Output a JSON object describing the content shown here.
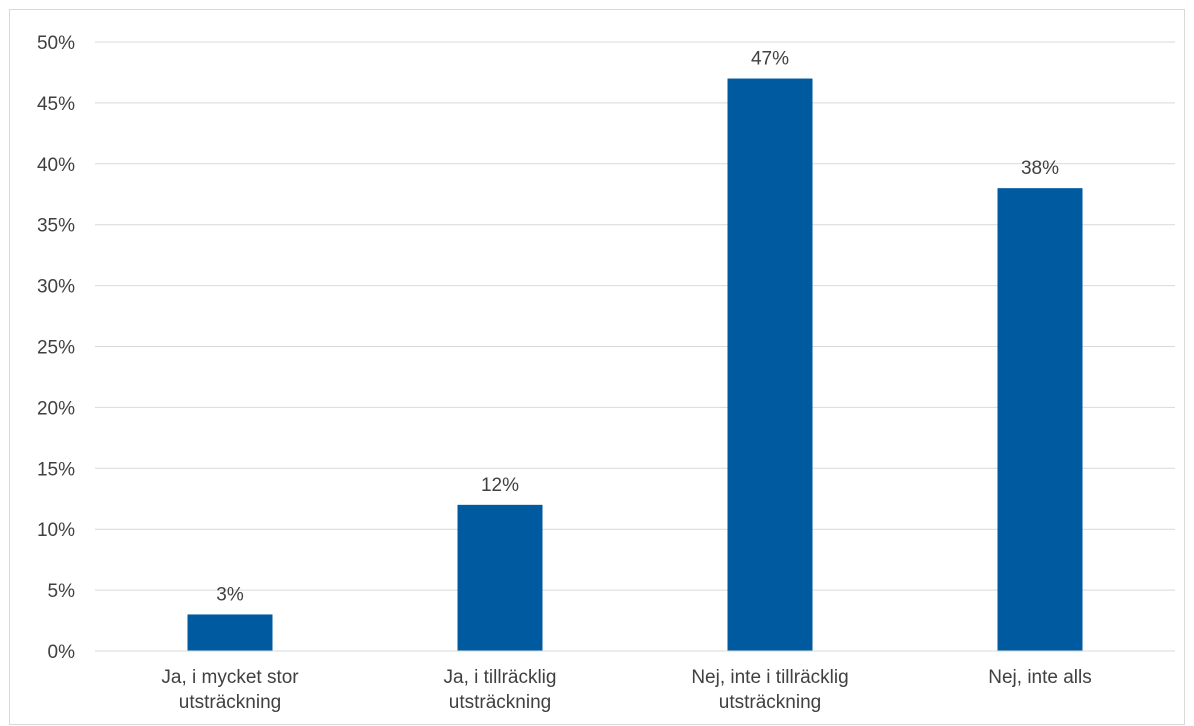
{
  "chart_data": {
    "type": "bar",
    "categories": [
      [
        "Ja, i mycket stor",
        "utsträckning"
      ],
      [
        "Ja, i tillräcklig",
        "utsträckning"
      ],
      [
        "Nej, inte i tillräcklig",
        "utsträckning"
      ],
      [
        "Nej, inte alls"
      ]
    ],
    "values": [
      3,
      12,
      47,
      38
    ],
    "data_labels": [
      "3%",
      "12%",
      "47%",
      "38%"
    ],
    "yticks": [
      "0%",
      "5%",
      "10%",
      "15%",
      "20%",
      "25%",
      "30%",
      "35%",
      "40%",
      "45%",
      "50%"
    ],
    "ylim": [
      0,
      50
    ],
    "bar_color": "#005aa0",
    "grid": true,
    "legend": "none"
  }
}
